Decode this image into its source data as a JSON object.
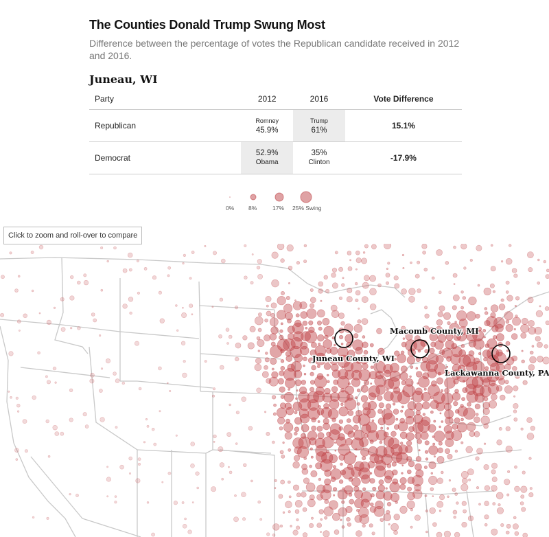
{
  "title": "The Counties Donald Trump Swung Most",
  "subtitle": "Difference between the percentage of votes the Republican candidate received in 2012 and 2016.",
  "county": "Juneau, WI",
  "table": {
    "headers": {
      "party": "Party",
      "y2012": "2012",
      "y2016": "2016",
      "diff": "Vote Difference"
    },
    "rows": [
      {
        "party": "Republican",
        "y2012": {
          "name": "Romney",
          "pct": "45.9%"
        },
        "y2016": {
          "name": "Trump",
          "pct": "61%"
        },
        "diff": "15.1%"
      },
      {
        "party": "Democrat",
        "y2012": {
          "name": "Obama",
          "pct": "52.9%"
        },
        "y2016": {
          "name": "Clinton",
          "pct": "35%"
        },
        "diff": "-17.9%"
      }
    ]
  },
  "legend": {
    "labels": [
      "0%",
      "8%",
      "17%",
      "25% Swing"
    ],
    "values": [
      0,
      8,
      17,
      25
    ]
  },
  "zoom_button": "Click to zoom and roll-over to compare",
  "annotations": [
    {
      "label": "Juneau County, WI"
    },
    {
      "label": "Macomb County, MI"
    },
    {
      "label": "Lackawanna County, PA"
    }
  ],
  "colors": {
    "bubble": "#c0464a",
    "state_border": "#c8c8c8",
    "highlight": "#ececec"
  }
}
